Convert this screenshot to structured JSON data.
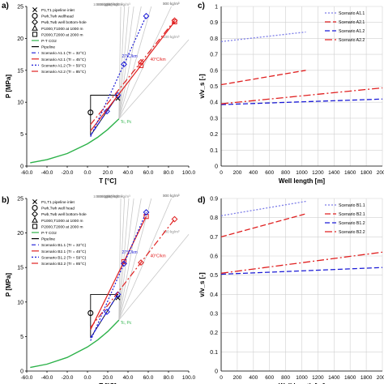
{
  "chart_data": [
    {
      "panel": "a)",
      "type": "line",
      "xlabel": "T [°C]",
      "ylabel": "P [MPa]",
      "xlim": [
        -60,
        100
      ],
      "ylim": [
        0,
        25
      ],
      "xticks": [
        "-60.0",
        "-40.0",
        "-20.0",
        "0.0",
        "20.0",
        "40.0",
        "60.0",
        "80.0",
        "100.0"
      ],
      "yticks": [
        "0",
        "5",
        "10",
        "15",
        "20",
        "25"
      ],
      "grid": false,
      "legend": [
        "P1,T1 pipeline inlet",
        "Pwh,Twh wellhead",
        "Pwb,Twb well bottom-hole",
        "P1000,T1000 at 1000 m",
        "P2000,T2000 at 2000 m",
        "P-T CO2",
        "Pipeline",
        "Scenario A1.1 (Tr = 32°C)",
        "Scenario A2.1 (Tr = 45°C)",
        "Scenario A1.2 (Tr = 59°C)",
        "Scenario A2.2 (Tr = 85°C)"
      ],
      "annotations": [
        "Tc, Pc",
        "27°C/km",
        "40°C/km"
      ],
      "density_labels": [
        "1000 kg/m³",
        "900 kg/m³",
        "800 kg/m³",
        "700 kg/m³",
        "600 kg/m³",
        "500 kg/m³",
        "300 kg/m³",
        "100 kg/m³"
      ],
      "saturation_curve": {
        "x": [
          -56.6,
          -40,
          -20,
          0,
          10,
          20,
          31
        ],
        "y": [
          0.52,
          1.0,
          1.97,
          3.49,
          4.5,
          5.73,
          7.38
        ]
      },
      "pipeline": {
        "x": [
          3,
          3,
          30,
          3
        ],
        "y": [
          4.8,
          11.1,
          11.1,
          4.8
        ]
      },
      "series": [
        {
          "name": "Scenario A1.1 (Tr = 32°C)",
          "x": [
            3,
            30
          ],
          "y": [
            4.8,
            11.1
          ]
        },
        {
          "name": "Scenario A2.1 (Tr = 45°C)",
          "x": [
            3,
            86
          ],
          "y": [
            5.5,
            22.6
          ]
        },
        {
          "name": "Scenario A1.2 (Tr = 59°C)",
          "x": [
            3,
            58
          ],
          "y": [
            4.6,
            23.5
          ]
        },
        {
          "name": "Scenario A2.2 (Tr = 85°C)",
          "x": [
            3,
            86
          ],
          "y": [
            6.5,
            22.8
          ]
        }
      ]
    },
    {
      "panel": "c)",
      "type": "line",
      "xlabel": "Well length [m]",
      "ylabel": "v/v_s [-]",
      "xlim": [
        0,
        2000
      ],
      "ylim": [
        0,
        1
      ],
      "xticks": [
        "0",
        "200",
        "400",
        "600",
        "800",
        "1000",
        "1200",
        "1400",
        "1600",
        "1800",
        "2000"
      ],
      "yticks": [
        "0",
        "0.1",
        "0.2",
        "0.3",
        "0.4",
        "0.5",
        "0.6",
        "0.7",
        "0.8",
        "0.9",
        "1"
      ],
      "grid": true,
      "legend_position": "top-right",
      "series": [
        {
          "name": "Scenario A1.1",
          "x": [
            0,
            1050
          ],
          "y": [
            0.78,
            0.84
          ]
        },
        {
          "name": "Scenario A2.1",
          "x": [
            0,
            1050
          ],
          "y": [
            0.51,
            0.6
          ]
        },
        {
          "name": "Scenario A1.2",
          "x": [
            0,
            2000
          ],
          "y": [
            0.385,
            0.42
          ]
        },
        {
          "name": "Scenario A2.2",
          "x": [
            0,
            2000
          ],
          "y": [
            0.39,
            0.49
          ]
        }
      ]
    },
    {
      "panel": "b)",
      "type": "line",
      "xlabel": "T [°C]",
      "ylabel": "P [MPa]",
      "xlim": [
        -60,
        100
      ],
      "ylim": [
        0,
        25
      ],
      "xticks": [
        "-60.0",
        "-40.0",
        "-20.0",
        "0.0",
        "20.0",
        "40.0",
        "60.0",
        "80.0",
        "100.0"
      ],
      "yticks": [
        "0",
        "5",
        "10",
        "15",
        "20",
        "25"
      ],
      "grid": false,
      "legend": [
        "P1,T1 pipeline inlet",
        "Pwh,Twh well head",
        "Pwb,Twb well bottom-hole",
        "P1000,T1000 at 1000 m",
        "P2000,T2000 at 2000 m",
        "P-T CO2",
        "Pipeline",
        "Scenario B1.1 (Tr = 32°C)",
        "Scenario B2.1 (Tr = 45°C)",
        "Scenario B1.2 (Tr = 59°C)",
        "Scenario B2.2 (Tr = 85°C)"
      ],
      "annotations": [
        "Tc, Pc",
        "27°C/km",
        "40°C/km"
      ],
      "density_labels": [
        "1000 kg/m³",
        "900 kg/m³",
        "800 kg/m³",
        "700 kg/m³",
        "600 kg/m³",
        "500 kg/m³",
        "300 kg/m³",
        "100 kg/m³"
      ],
      "saturation_curve": {
        "x": [
          -56.6,
          -40,
          -20,
          0,
          10,
          20,
          31
        ],
        "y": [
          0.52,
          1.0,
          1.97,
          3.49,
          4.5,
          5.73,
          7.38
        ]
      },
      "pipeline": {
        "x": [
          3,
          3,
          30,
          3
        ],
        "y": [
          4.8,
          11.1,
          11.1,
          4.8
        ]
      },
      "series": [
        {
          "name": "Scenario B1.1 (Tr = 32°C)",
          "x": [
            3,
            30
          ],
          "y": [
            4.8,
            11.1
          ]
        },
        {
          "name": "Scenario B2.1 (Tr = 45°C)",
          "x": [
            3,
            58
          ],
          "y": [
            6.0,
            22.4
          ]
        },
        {
          "name": "Scenario B1.2 (Tr = 59°C)",
          "x": [
            3,
            58
          ],
          "y": [
            4.4,
            23.0
          ]
        },
        {
          "name": "Scenario B2.2 (Tr = 85°C)",
          "x": [
            3,
            86
          ],
          "y": [
            6.3,
            22.0
          ]
        }
      ]
    },
    {
      "panel": "d)",
      "type": "line",
      "xlabel": "Well length [m]",
      "ylabel": "v/v_s [-]",
      "xlim": [
        0,
        2000
      ],
      "ylim": [
        0,
        0.9
      ],
      "xticks": [
        "0",
        "200",
        "400",
        "600",
        "800",
        "1000",
        "1200",
        "1400",
        "1600",
        "1800",
        "2000"
      ],
      "yticks": [
        "0",
        "0.1",
        "0.2",
        "0.3",
        "0.4",
        "0.5",
        "0.6",
        "0.7",
        "0.8",
        "0.9"
      ],
      "grid": true,
      "legend_position": "top-right",
      "series": [
        {
          "name": "Scenario B1.1",
          "x": [
            0,
            1050
          ],
          "y": [
            0.81,
            0.885
          ]
        },
        {
          "name": "Scenario B2.1",
          "x": [
            0,
            1050
          ],
          "y": [
            0.7,
            0.82
          ]
        },
        {
          "name": "Scenario B1.2",
          "x": [
            0,
            2000
          ],
          "y": [
            0.505,
            0.54
          ]
        },
        {
          "name": "Scenario B2.2",
          "x": [
            0,
            2000
          ],
          "y": [
            0.51,
            0.62
          ]
        }
      ]
    }
  ],
  "styles": {
    "saturation_color": "#2db24a",
    "pipeline_color": "#000000",
    "density_color": "#c8c8c8",
    "left_series": [
      {
        "color": "#1a1ad6",
        "dash": "5,3",
        "marker": "diamond"
      },
      {
        "color": "#e02020",
        "dash": "",
        "marker": "square"
      },
      {
        "color": "#1a1ad6",
        "dash": "2,2",
        "marker": "diamond"
      },
      {
        "color": "#e02020",
        "dash": "8,3,2,3",
        "marker": "diamond"
      }
    ],
    "right_series": [
      {
        "color": "#7d7ee8",
        "dash": "2,2"
      },
      {
        "color": "#e02020",
        "dash": "7,3"
      },
      {
        "color": "#1a1ad6",
        "dash": "6,3"
      },
      {
        "color": "#e02020",
        "dash": "9,3,2,3"
      }
    ]
  }
}
